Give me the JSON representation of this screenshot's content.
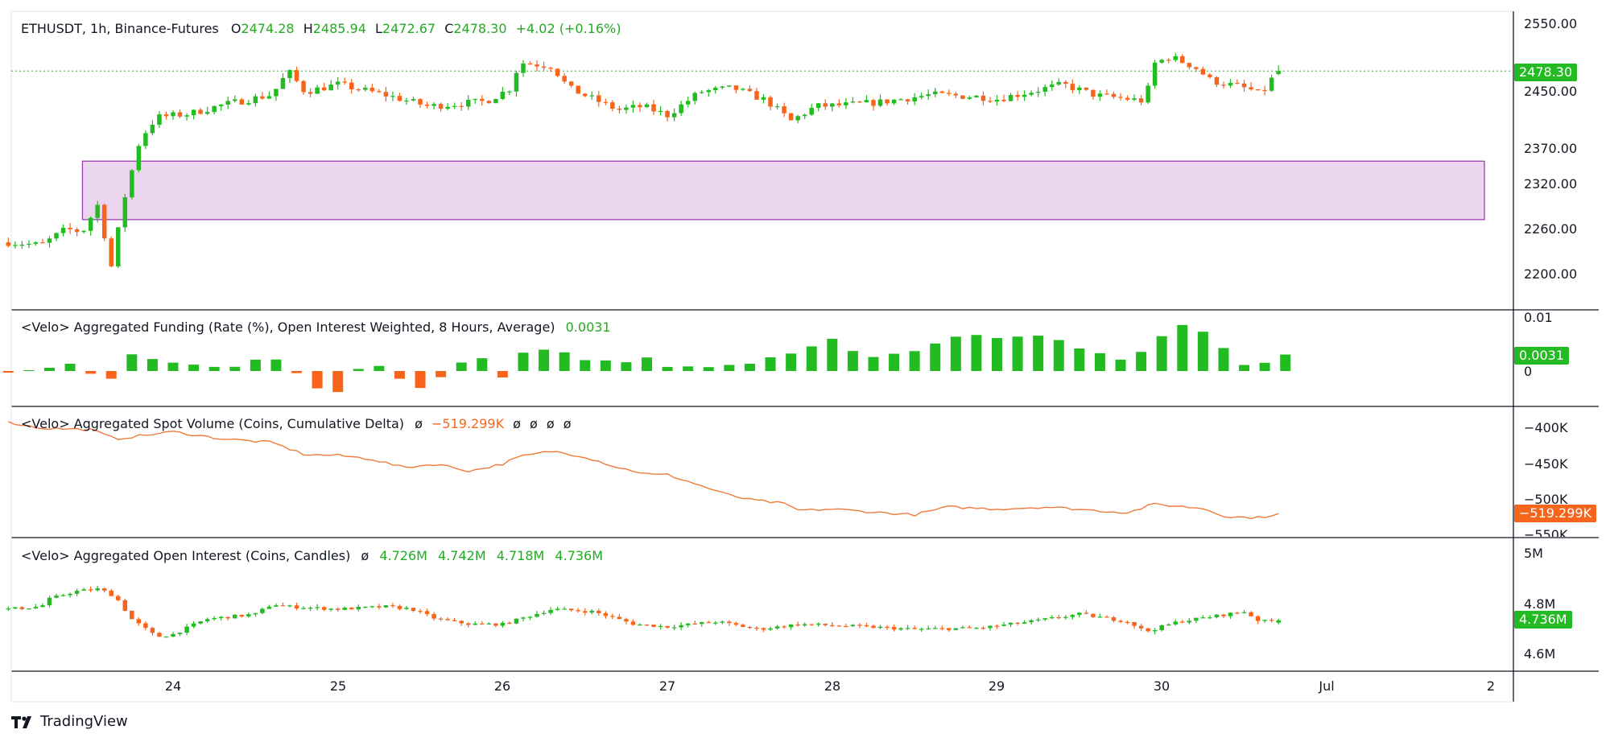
{
  "brand": {
    "logo_text": "TradingView"
  },
  "colors": {
    "up": "#22bb22",
    "down": "#f7641b",
    "zone_fill": "#ecd5ee",
    "zone_border": "#9b3fb0",
    "cvd_line": "#f07a3a",
    "grid_border": "#131722"
  },
  "main_legend": {
    "symbol": "ETHUSDT, 1h, Binance-Futures",
    "o_label": "O",
    "o_value": "2474.28",
    "h_label": "H",
    "h_value": "2485.94",
    "l_label": "L",
    "l_value": "2472.67",
    "c_label": "C",
    "c_value": "2478.30",
    "change": "+4.02 (+0.16%)"
  },
  "funding_legend": {
    "title": "<Velo> Aggregated Funding (Rate (%), Open Interest Weighted, 8 Hours, Average)",
    "value": "0.0031"
  },
  "spot_legend": {
    "title": "<Velo> Aggregated Spot Volume (Coins, Cumulative Delta)",
    "null_mark": "ø",
    "value": "−519.299K",
    "extras": "ø  ø  ø  ø"
  },
  "oi_legend": {
    "title": "<Velo> Aggregated Open Interest (Coins, Candles)",
    "null_mark": "ø",
    "o": "4.726M",
    "h": "4.742M",
    "l": "4.718M",
    "c": "4.736M"
  },
  "axes": {
    "price_ticks": [
      "2550.00",
      "2450.00",
      "2370.00",
      "2320.00",
      "2260.00",
      "2200.00"
    ],
    "price_tag": "2478.30",
    "funding_ticks": [
      "0.01",
      "0"
    ],
    "funding_tag": "0.0031",
    "cvd_ticks": [
      "−400K",
      "−450K",
      "−500K",
      "−550K"
    ],
    "cvd_tag": "−519.299K",
    "oi_ticks": [
      "5M",
      "4.8M",
      "4.6M"
    ],
    "oi_tag": "4.736M",
    "x_ticks": [
      "24",
      "25",
      "26",
      "27",
      "28",
      "29",
      "30",
      "Jul",
      "2"
    ]
  },
  "chart_data": [
    {
      "type": "candlestick",
      "name": "ETHUSDT",
      "x_unit": "days (June 2024, 1h candles)",
      "ohlc_keyframes": [
        [
          23.0,
          2244
        ],
        [
          23.2,
          2240
        ],
        [
          23.35,
          2262
        ],
        [
          23.45,
          2258
        ],
        [
          23.55,
          2298
        ],
        [
          23.62,
          2205
        ],
        [
          23.7,
          2300
        ],
        [
          23.8,
          2385
        ],
        [
          23.9,
          2415
        ],
        [
          24.1,
          2420
        ],
        [
          24.3,
          2432
        ],
        [
          24.6,
          2446
        ],
        [
          24.7,
          2478
        ],
        [
          24.8,
          2450
        ],
        [
          25.0,
          2460
        ],
        [
          25.3,
          2445
        ],
        [
          25.55,
          2430
        ],
        [
          25.9,
          2437
        ],
        [
          26.05,
          2455
        ],
        [
          26.1,
          2490
        ],
        [
          26.3,
          2485
        ],
        [
          26.4,
          2455
        ],
        [
          26.7,
          2425
        ],
        [
          26.85,
          2430
        ],
        [
          27.0,
          2418
        ],
        [
          27.2,
          2450
        ],
        [
          27.4,
          2455
        ],
        [
          27.6,
          2438
        ],
        [
          27.75,
          2410
        ],
        [
          27.9,
          2430
        ],
        [
          28.1,
          2432
        ],
        [
          28.3,
          2436
        ],
        [
          28.6,
          2446
        ],
        [
          28.9,
          2443
        ],
        [
          29.0,
          2440
        ],
        [
          29.4,
          2460
        ],
        [
          29.6,
          2445
        ],
        [
          29.8,
          2440
        ],
        [
          29.9,
          2437
        ],
        [
          29.95,
          2488
        ],
        [
          30.05,
          2498
        ],
        [
          30.2,
          2484
        ],
        [
          30.3,
          2465
        ],
        [
          30.45,
          2458
        ],
        [
          30.55,
          2452
        ],
        [
          30.6,
          2445
        ],
        [
          30.7,
          2478
        ]
      ],
      "last": {
        "open": 2474.28,
        "high": 2485.94,
        "low": 2472.67,
        "close": 2478.3
      },
      "zone": {
        "from_x": 23.45,
        "to_x": 32.0,
        "price_low": 2275,
        "price_high": 2355
      }
    },
    {
      "type": "bar",
      "name": "Aggregated Funding",
      "keyframes": [
        [
          23.0,
          -0.0005
        ],
        [
          23.4,
          0.0012
        ],
        [
          23.6,
          -0.002
        ],
        [
          23.75,
          0.003
        ],
        [
          24.0,
          0.0015
        ],
        [
          24.3,
          0.0005
        ],
        [
          24.5,
          0.002
        ],
        [
          24.7,
          0.0018
        ],
        [
          24.8,
          -0.003
        ],
        [
          25.0,
          -0.004
        ],
        [
          25.1,
          0.0005
        ],
        [
          25.3,
          0.001
        ],
        [
          25.45,
          -0.004
        ],
        [
          25.6,
          -0.0015
        ],
        [
          25.7,
          0.001
        ],
        [
          25.9,
          0.0025
        ],
        [
          26.0,
          -0.0015
        ],
        [
          26.1,
          0.0035
        ],
        [
          26.3,
          0.004
        ],
        [
          26.5,
          0.002
        ],
        [
          26.8,
          0.0018
        ],
        [
          26.9,
          0.003
        ],
        [
          27.0,
          0.0008
        ],
        [
          27.5,
          0.0012
        ],
        [
          27.8,
          0.004
        ],
        [
          28.0,
          0.006
        ],
        [
          28.2,
          0.0025
        ],
        [
          28.5,
          0.004
        ],
        [
          28.8,
          0.007
        ],
        [
          29.0,
          0.0062
        ],
        [
          29.3,
          0.0068
        ],
        [
          29.5,
          0.004
        ],
        [
          29.8,
          0.0018
        ],
        [
          29.95,
          0.005
        ],
        [
          30.1,
          0.0088
        ],
        [
          30.3,
          0.007
        ],
        [
          30.45,
          0.0015
        ],
        [
          30.6,
          0.0012
        ],
        [
          30.7,
          0.0031
        ]
      ],
      "last": 0.0031
    },
    {
      "type": "line",
      "name": "Aggregated Spot Volume CVD",
      "keyframes": [
        [
          23.0,
          -392000
        ],
        [
          23.2,
          -400000
        ],
        [
          23.5,
          -402000
        ],
        [
          23.65,
          -415000
        ],
        [
          24.0,
          -405000
        ],
        [
          24.3,
          -415000
        ],
        [
          24.6,
          -420000
        ],
        [
          24.8,
          -437000
        ],
        [
          25.0,
          -438000
        ],
        [
          25.2,
          -443000
        ],
        [
          25.4,
          -455000
        ],
        [
          25.6,
          -450000
        ],
        [
          25.8,
          -460000
        ],
        [
          26.0,
          -450000
        ],
        [
          26.1,
          -440000
        ],
        [
          26.3,
          -432000
        ],
        [
          26.5,
          -440000
        ],
        [
          26.7,
          -455000
        ],
        [
          26.9,
          -465000
        ],
        [
          27.0,
          -465000
        ],
        [
          27.2,
          -480000
        ],
        [
          27.35,
          -492000
        ],
        [
          27.5,
          -500000
        ],
        [
          27.7,
          -505000
        ],
        [
          27.8,
          -515000
        ],
        [
          28.0,
          -513000
        ],
        [
          28.3,
          -518000
        ],
        [
          28.5,
          -521000
        ],
        [
          28.7,
          -510000
        ],
        [
          29.0,
          -513000
        ],
        [
          29.3,
          -510000
        ],
        [
          29.6,
          -515000
        ],
        [
          29.8,
          -518000
        ],
        [
          29.95,
          -506000
        ],
        [
          30.1,
          -509000
        ],
        [
          30.25,
          -512000
        ],
        [
          30.4,
          -524000
        ],
        [
          30.6,
          -525000
        ],
        [
          30.7,
          -519299
        ]
      ],
      "last": -519299
    },
    {
      "type": "candlestick",
      "name": "Aggregated Open Interest",
      "keyframes": [
        [
          23.0,
          4.78
        ],
        [
          23.2,
          4.79
        ],
        [
          23.25,
          4.82
        ],
        [
          23.4,
          4.85
        ],
        [
          23.55,
          4.86
        ],
        [
          23.65,
          4.83
        ],
        [
          23.75,
          4.74
        ],
        [
          23.9,
          4.67
        ],
        [
          24.0,
          4.68
        ],
        [
          24.2,
          4.74
        ],
        [
          24.5,
          4.76
        ],
        [
          24.6,
          4.8
        ],
        [
          24.7,
          4.79
        ],
        [
          25.0,
          4.78
        ],
        [
          25.3,
          4.79
        ],
        [
          25.45,
          4.78
        ],
        [
          25.6,
          4.74
        ],
        [
          25.8,
          4.72
        ],
        [
          26.0,
          4.72
        ],
        [
          26.3,
          4.78
        ],
        [
          26.55,
          4.77
        ],
        [
          26.8,
          4.72
        ],
        [
          27.0,
          4.71
        ],
        [
          27.3,
          4.73
        ],
        [
          27.55,
          4.7
        ],
        [
          27.8,
          4.72
        ],
        [
          28.2,
          4.71
        ],
        [
          28.5,
          4.7
        ],
        [
          28.9,
          4.705
        ],
        [
          29.2,
          4.73
        ],
        [
          29.5,
          4.76
        ],
        [
          29.8,
          4.73
        ],
        [
          29.9,
          4.69
        ],
        [
          30.1,
          4.73
        ],
        [
          30.3,
          4.75
        ],
        [
          30.5,
          4.77
        ],
        [
          30.6,
          4.73
        ],
        [
          30.7,
          4.736
        ]
      ],
      "last": {
        "open": 4.726,
        "high": 4.742,
        "low": 4.718,
        "close": 4.736
      }
    }
  ]
}
